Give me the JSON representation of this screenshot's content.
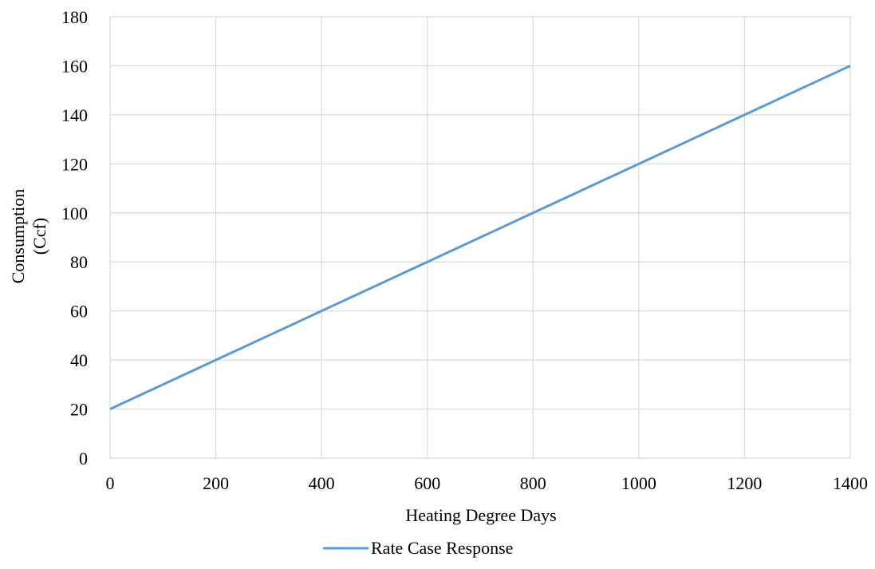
{
  "chart_data": {
    "type": "line",
    "title": "",
    "xlabel": "Heating Degree Days",
    "ylabel_lines": [
      "Consumption",
      "(Ccf)"
    ],
    "xlim": [
      0,
      1400
    ],
    "ylim": [
      0,
      180
    ],
    "x_ticks": [
      0,
      200,
      400,
      600,
      800,
      1000,
      1200,
      1400
    ],
    "y_ticks": [
      0,
      20,
      40,
      60,
      80,
      100,
      120,
      140,
      160,
      180
    ],
    "grid": true,
    "legend_position": "bottom-center",
    "series": [
      {
        "name": "Rate Case Response",
        "color": "#5b9bd5",
        "x": [
          0,
          200,
          400,
          600,
          800,
          1000,
          1200,
          1400
        ],
        "y": [
          20,
          40,
          60,
          80,
          100,
          120,
          140,
          160
        ]
      }
    ],
    "colors": {
      "grid": "#d9d9d9",
      "text": "#000000"
    }
  }
}
